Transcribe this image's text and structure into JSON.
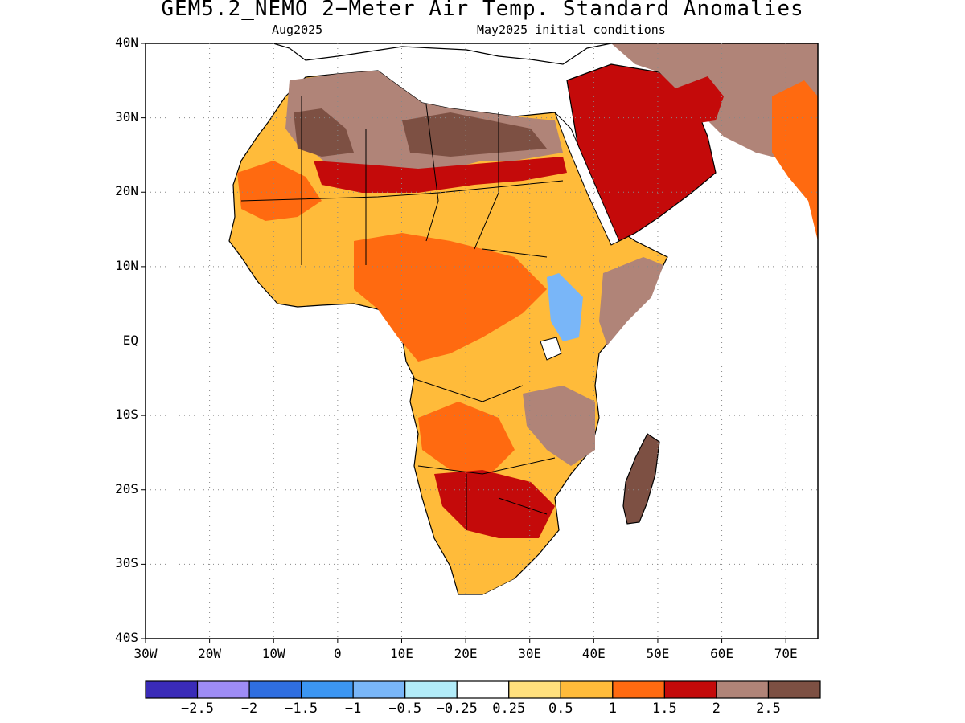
{
  "title": "GEM5.2_NEMO 2−Meter Air Temp. Standard Anomalies",
  "subtitle_left": "Aug2025",
  "subtitle_right": "May2025 initial conditions",
  "lat_labels": [
    "40N",
    "30N",
    "20N",
    "10N",
    "EQ",
    "10S",
    "20S",
    "30S",
    "40S"
  ],
  "lon_labels": [
    "30W",
    "20W",
    "10W",
    "0",
    "10E",
    "20E",
    "30E",
    "40E",
    "50E",
    "60E",
    "70E"
  ],
  "lon_range": [
    -30,
    75
  ],
  "lat_range": [
    -40,
    40
  ],
  "grid": true,
  "colorbar": {
    "colors": [
      "#3a2bb8",
      "#9e8cf5",
      "#2f6ee0",
      "#3c96f2",
      "#79b6f8",
      "#b2ecf9",
      "#ffffff",
      "#ffe07d",
      "#ffbb3a",
      "#ff6a10",
      "#c40a0a",
      "#b08478",
      "#7d5043"
    ],
    "labels": [
      "−2.5",
      "−2",
      "−1.5",
      "−1",
      "−0.5",
      "−0.25",
      "0.25",
      "0.5",
      "1",
      "1.5",
      "2",
      "2.5"
    ]
  }
}
